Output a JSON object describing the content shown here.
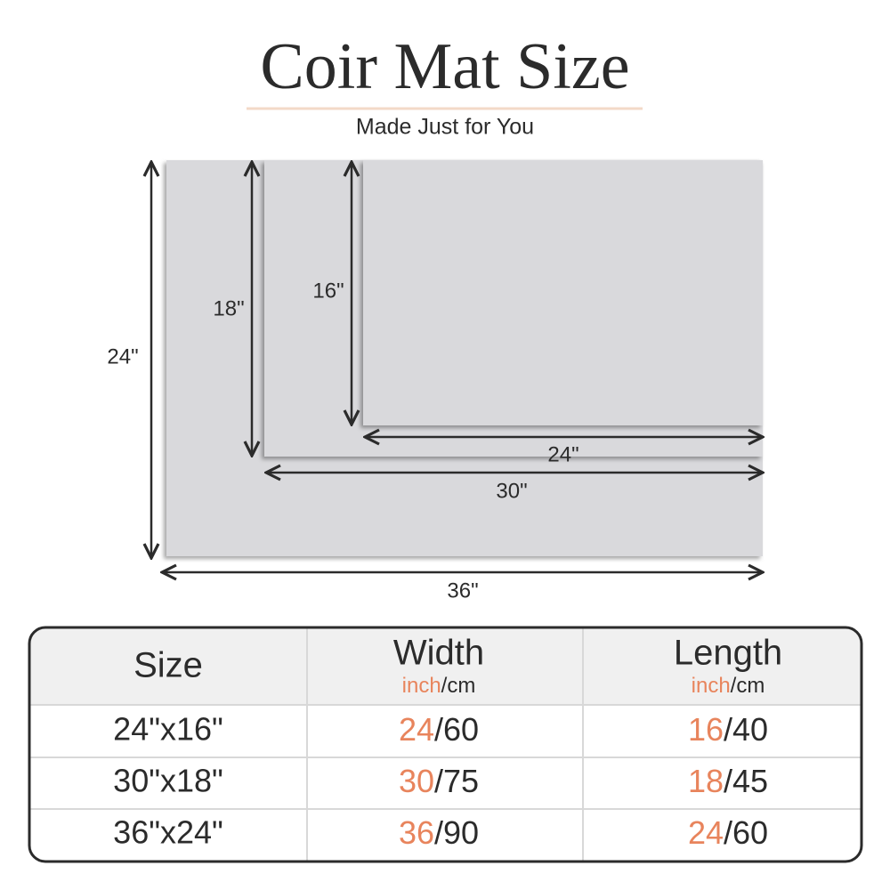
{
  "header": {
    "title": "Coir Mat Size",
    "subtitle": "Made Just for You"
  },
  "diagram": {
    "mats": [
      {
        "width_label": "36\"",
        "height_label": "24\""
      },
      {
        "width_label": "30\"",
        "height_label": "18\""
      },
      {
        "width_label": "24\"",
        "height_label": "16\""
      }
    ]
  },
  "table": {
    "separator": "/",
    "headers": [
      {
        "title": "Size"
      },
      {
        "title": "Width",
        "unit_primary": "inch",
        "unit_secondary": "cm"
      },
      {
        "title": "Length",
        "unit_primary": "inch",
        "unit_secondary": "cm"
      }
    ],
    "rows": [
      [
        "24\"x16\"",
        {
          "inch": "24",
          "cm": "60"
        },
        {
          "inch": "16",
          "cm": "40"
        }
      ],
      [
        "30\"x18\"",
        {
          "inch": "30",
          "cm": "75"
        },
        {
          "inch": "18",
          "cm": "45"
        }
      ],
      [
        "36\"x24\"",
        {
          "inch": "36",
          "cm": "90"
        },
        {
          "inch": "24",
          "cm": "60"
        }
      ]
    ]
  }
}
